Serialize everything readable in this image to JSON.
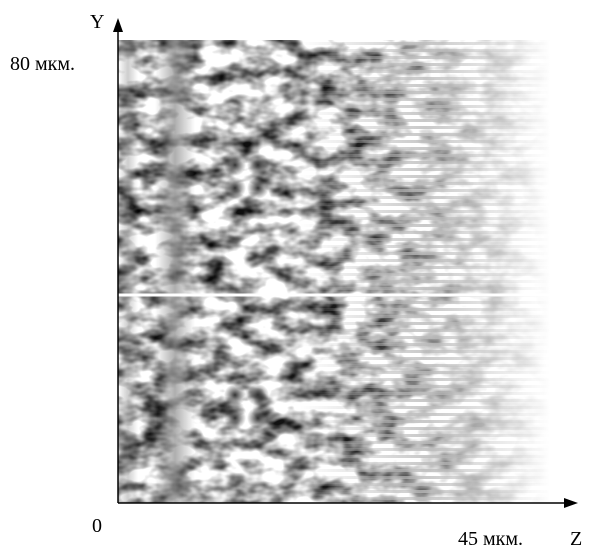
{
  "axes": {
    "y_label": "Y",
    "y_max": "80 мкм.",
    "origin": "0",
    "z_max": "45 мкм.",
    "z_label": "Z"
  }
}
